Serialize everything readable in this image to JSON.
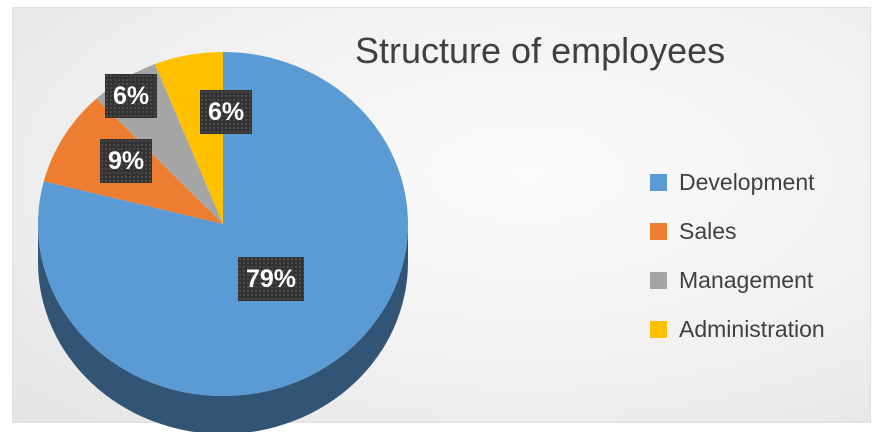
{
  "chart_data": {
    "type": "pie",
    "title": "Structure of employees",
    "categories": [
      "Development",
      "Sales",
      "Management",
      "Administration"
    ],
    "values": [
      79,
      9,
      6,
      6
    ],
    "labels": [
      "79%",
      "9%",
      "6%",
      "6%"
    ],
    "colors": [
      "#5b9bd5",
      "#ed7d31",
      "#a5a5a5",
      "#ffc000"
    ],
    "legend_position": "right",
    "style": "3d"
  }
}
